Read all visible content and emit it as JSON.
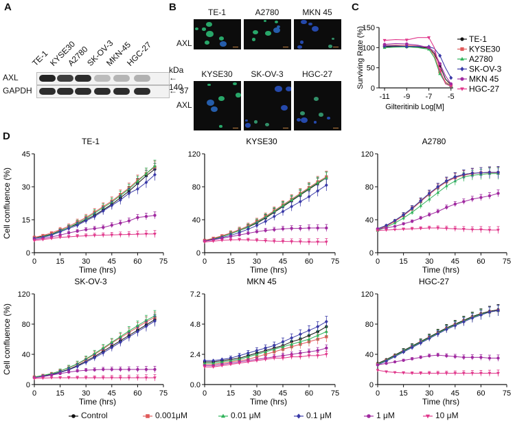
{
  "panels": {
    "a": "A",
    "b": "B",
    "c": "C",
    "d": "D"
  },
  "panelA": {
    "lanes": [
      "TE-1",
      "KYSE30",
      "A2780",
      "SK-OV-3",
      "MKN-45",
      "HGC-27"
    ],
    "rows": [
      {
        "name": "AXL",
        "marker": "140",
        "band_intensity": [
          0.95,
          0.8,
          0.9,
          0.12,
          0.15,
          0.18
        ]
      },
      {
        "name": "GAPDH",
        "marker": "37",
        "band_intensity": [
          0.9,
          0.9,
          0.9,
          0.9,
          0.9,
          0.9
        ]
      }
    ],
    "kda_label": "kDa",
    "arrow": "←"
  },
  "panelB": {
    "row_label": "AXL",
    "images": [
      {
        "title": "TE-1",
        "signal": "green"
      },
      {
        "title": "A2780",
        "signal": "green"
      },
      {
        "title": "MKN 45",
        "signal": "blue"
      },
      {
        "title": "KYSE30",
        "signal": "green"
      },
      {
        "title": "SK-OV-3",
        "signal": "blue"
      },
      {
        "title": "HGC-27",
        "signal": "blue"
      }
    ]
  },
  "chart_data": [
    {
      "type": "line",
      "id": "surviving",
      "title": "",
      "xlabel": "Gilteritinib  Log[M]",
      "ylabel": "Surviving Rate (%)",
      "xlim": [
        -11.5,
        -4.8
      ],
      "ylim": [
        0,
        150
      ],
      "xticks": [
        -11,
        -9,
        -7,
        -5
      ],
      "yticks": [
        0,
        50,
        100,
        150
      ],
      "x": [
        -11,
        -10,
        -9,
        -8,
        -7,
        -6.5,
        -6,
        -5.5,
        -5
      ],
      "series": [
        {
          "name": "TE-1",
          "color": "#111111",
          "marker": "circle",
          "values": [
            102,
            103,
            102,
            101,
            99,
            85,
            55,
            22,
            8
          ]
        },
        {
          "name": "KYSE30",
          "color": "#e05a5a",
          "marker": "square",
          "values": [
            105,
            106,
            105,
            104,
            100,
            80,
            40,
            15,
            6
          ]
        },
        {
          "name": "A2780",
          "color": "#2fb35a",
          "marker": "triangle",
          "values": [
            100,
            101,
            102,
            100,
            96,
            75,
            35,
            12,
            5
          ]
        },
        {
          "name": "SK-OV-3",
          "color": "#3a3aa8",
          "marker": "diamond",
          "values": [
            104,
            104,
            103,
            103,
            102,
            98,
            80,
            50,
            25
          ]
        },
        {
          "name": "MKN 45",
          "color": "#a02aa0",
          "marker": "circle",
          "values": [
            108,
            110,
            109,
            106,
            100,
            90,
            60,
            30,
            10
          ]
        },
        {
          "name": "HGC-27",
          "color": "#e0358a",
          "marker": "tri-down",
          "values": [
            118,
            120,
            119,
            125,
            125,
            100,
            45,
            10,
            4
          ]
        }
      ],
      "legend": "right"
    },
    {
      "type": "line",
      "id": "te1",
      "title": "TE-1",
      "xlabel": "Time (hrs)",
      "ylabel": "Cell confluence (%)",
      "xlim": [
        0,
        75
      ],
      "ylim": [
        0,
        45
      ],
      "xticks": [
        0,
        15,
        30,
        45,
        60,
        75
      ],
      "yticks": [
        0,
        15,
        30,
        45
      ],
      "x": [
        0,
        5,
        10,
        15,
        20,
        25,
        30,
        35,
        40,
        45,
        50,
        55,
        60,
        65,
        70
      ],
      "series": [
        {
          "name": "Control",
          "values": [
            7,
            7.5,
            8.5,
            10,
            11.5,
            13,
            15,
            17,
            19.5,
            22,
            25,
            28,
            31.5,
            35,
            38
          ]
        },
        {
          "name": "0.001μM",
          "values": [
            7,
            7.8,
            9,
            10.5,
            12,
            14,
            16,
            18.5,
            21,
            23.5,
            26.5,
            29.5,
            33,
            36,
            39
          ]
        },
        {
          "name": "0.01 μM",
          "values": [
            6.5,
            7.3,
            8.3,
            9.8,
            11.5,
            13.5,
            15.5,
            18,
            20.5,
            23,
            26,
            29,
            32.5,
            36,
            39.5
          ]
        },
        {
          "name": "0.1 μM",
          "values": [
            6.5,
            7,
            8,
            9.5,
            11,
            12.5,
            14.5,
            16.5,
            19,
            21.5,
            24,
            27,
            29,
            32,
            35.5
          ]
        },
        {
          "name": "1 μM",
          "values": [
            6,
            6.5,
            7.2,
            8,
            9,
            9.8,
            10.5,
            11,
            11.5,
            12.5,
            13.5,
            14.5,
            16,
            16.5,
            17
          ]
        },
        {
          "name": "10 μM",
          "values": [
            5.5,
            6,
            6.5,
            7,
            7.2,
            7.5,
            7.7,
            7.9,
            8,
            8.1,
            8.2,
            8.3,
            8.4,
            8.5,
            8.5
          ]
        }
      ]
    },
    {
      "type": "line",
      "id": "kyse30",
      "title": "KYSE30",
      "xlabel": "Time (hrs)",
      "ylabel": "",
      "xlim": [
        0,
        75
      ],
      "ylim": [
        0,
        120
      ],
      "xticks": [
        0,
        15,
        30,
        45,
        60,
        75
      ],
      "yticks": [
        0,
        40,
        80,
        120
      ],
      "x": [
        0,
        5,
        10,
        15,
        20,
        25,
        30,
        35,
        40,
        45,
        50,
        55,
        60,
        65,
        70
      ],
      "series": [
        {
          "name": "Control",
          "values": [
            15,
            17,
            20,
            23,
            27,
            31,
            36,
            42,
            49,
            56,
            63,
            70,
            77,
            84,
            91
          ]
        },
        {
          "name": "0.001μM",
          "values": [
            15,
            17.5,
            20.5,
            24,
            28,
            32.5,
            38,
            44,
            51,
            58,
            65,
            72,
            79,
            86,
            92
          ]
        },
        {
          "name": "0.01 μM",
          "values": [
            14,
            16.5,
            19.5,
            23,
            27,
            31.5,
            37,
            43,
            50,
            57,
            64,
            71,
            78,
            85,
            91
          ]
        },
        {
          "name": "0.1 μM",
          "values": [
            14,
            16,
            18.5,
            21,
            24.5,
            28.5,
            33,
            38,
            44,
            50,
            56,
            62,
            68,
            75,
            82
          ]
        },
        {
          "name": "1 μM",
          "values": [
            14,
            15.5,
            17.5,
            19.5,
            21.5,
            23.5,
            25.5,
            27,
            28,
            29,
            29.5,
            29.5,
            30,
            30,
            30
          ]
        },
        {
          "name": "10 μM",
          "values": [
            13,
            14,
            15,
            15.5,
            15.8,
            15.5,
            15,
            14.5,
            14,
            13.8,
            13.5,
            13.3,
            13,
            13,
            13
          ]
        }
      ]
    },
    {
      "type": "line",
      "id": "a2780",
      "title": "A2780",
      "xlabel": "Time (hrs)",
      "ylabel": "",
      "xlim": [
        0,
        75
      ],
      "ylim": [
        0,
        120
      ],
      "xticks": [
        0,
        15,
        30,
        45,
        60,
        75
      ],
      "yticks": [
        0,
        40,
        80,
        120
      ],
      "x": [
        0,
        5,
        10,
        15,
        20,
        25,
        30,
        35,
        40,
        45,
        50,
        55,
        60,
        65,
        70
      ],
      "series": [
        {
          "name": "Control",
          "values": [
            29,
            33,
            39,
            46,
            54,
            63,
            72,
            80,
            87,
            92,
            95,
            96.5,
            97,
            97.5,
            97.5
          ]
        },
        {
          "name": "0.001μM",
          "values": [
            28,
            32,
            38,
            45,
            53,
            62,
            71,
            79,
            86,
            91,
            94,
            96,
            97,
            97,
            97
          ]
        },
        {
          "name": "0.01 μM",
          "values": [
            27,
            31,
            36,
            42,
            49,
            57,
            65,
            73,
            81,
            87,
            92,
            94,
            95,
            96,
            96
          ]
        },
        {
          "name": "0.1 μM",
          "values": [
            29,
            33,
            39,
            46,
            54,
            63,
            72,
            80,
            87,
            92,
            95,
            96.5,
            97,
            97.5,
            97.5
          ]
        },
        {
          "name": "1 μM",
          "values": [
            29,
            30,
            32,
            35,
            38,
            42,
            46,
            50,
            55,
            59,
            62,
            65,
            67,
            69,
            72
          ]
        },
        {
          "name": "10 μM",
          "values": [
            27,
            27.5,
            28,
            28.5,
            29,
            29.5,
            30,
            30,
            29.5,
            29,
            28.5,
            28,
            28,
            27.5,
            27.5
          ]
        }
      ]
    },
    {
      "type": "line",
      "id": "skov3",
      "title": "SK-OV-3",
      "xlabel": "Time (hrs)",
      "ylabel": "Cell confluence (%)",
      "xlim": [
        0,
        75
      ],
      "ylim": [
        0,
        120
      ],
      "xticks": [
        0,
        15,
        30,
        45,
        60,
        75
      ],
      "yticks": [
        0,
        40,
        80,
        120
      ],
      "x": [
        0,
        5,
        10,
        15,
        20,
        25,
        30,
        35,
        40,
        45,
        50,
        55,
        60,
        65,
        70
      ],
      "series": [
        {
          "name": "Control",
          "values": [
            10,
            11.5,
            13.5,
            16.5,
            20,
            25,
            31,
            37,
            44,
            51,
            58,
            65,
            72,
            79,
            86
          ]
        },
        {
          "name": "0.001μM",
          "values": [
            10,
            12,
            14.5,
            18,
            22,
            27,
            33,
            40,
            47,
            55,
            62,
            69,
            76,
            83,
            89
          ]
        },
        {
          "name": "0.01 μM",
          "values": [
            10,
            12,
            14.5,
            18,
            22.5,
            27.5,
            34,
            41,
            48.5,
            56,
            63.5,
            71,
            78,
            85,
            91
          ]
        },
        {
          "name": "0.1 μM",
          "values": [
            9,
            11,
            13,
            16,
            19.5,
            24,
            29.5,
            35.5,
            42,
            49,
            56,
            63,
            70,
            77,
            84
          ]
        },
        {
          "name": "1 μM",
          "values": [
            9,
            10.5,
            12.5,
            14.5,
            16.5,
            18,
            19,
            19.5,
            20,
            20,
            20,
            20,
            20,
            20,
            20
          ]
        },
        {
          "name": "10 μM",
          "values": [
            8,
            8.5,
            9,
            9,
            9,
            9,
            9,
            9,
            9,
            9,
            9,
            9,
            9,
            9,
            9
          ]
        }
      ]
    },
    {
      "type": "line",
      "id": "mkn45",
      "title": "MKN 45",
      "xlabel": "Time (hrs)",
      "ylabel": "",
      "xlim": [
        0,
        75
      ],
      "ylim": [
        0,
        7.2
      ],
      "xticks": [
        0,
        15,
        30,
        45,
        60,
        75
      ],
      "yticks": [
        0,
        2.4,
        4.8,
        7.2
      ],
      "x": [
        0,
        5,
        10,
        15,
        20,
        25,
        30,
        35,
        40,
        45,
        50,
        55,
        60,
        65,
        70
      ],
      "series": [
        {
          "name": "Control",
          "values": [
            1.8,
            1.8,
            1.9,
            2.0,
            2.1,
            2.3,
            2.5,
            2.7,
            2.9,
            3.1,
            3.4,
            3.6,
            3.9,
            4.2,
            4.6
          ]
        },
        {
          "name": "0.001μM",
          "values": [
            1.6,
            1.6,
            1.7,
            1.8,
            1.9,
            2.0,
            2.2,
            2.4,
            2.6,
            2.8,
            3.0,
            3.2,
            3.4,
            3.6,
            3.8
          ]
        },
        {
          "name": "0.01 μM",
          "values": [
            1.7,
            1.7,
            1.8,
            1.9,
            2.0,
            2.2,
            2.4,
            2.6,
            2.8,
            3.0,
            3.2,
            3.4,
            3.6,
            3.9,
            4.2
          ]
        },
        {
          "name": "0.1 μM",
          "values": [
            1.9,
            1.9,
            2.0,
            2.1,
            2.3,
            2.5,
            2.7,
            2.9,
            3.1,
            3.4,
            3.7,
            4.0,
            4.3,
            4.6,
            5.0
          ]
        },
        {
          "name": "1 μM",
          "values": [
            1.5,
            1.5,
            1.6,
            1.7,
            1.8,
            1.9,
            2.0,
            2.1,
            2.2,
            2.3,
            2.4,
            2.5,
            2.6,
            2.7,
            2.9
          ]
        },
        {
          "name": "10 μM",
          "values": [
            1.4,
            1.4,
            1.5,
            1.6,
            1.7,
            1.8,
            1.9,
            2.0,
            2.1,
            2.1,
            2.2,
            2.2,
            2.3,
            2.3,
            2.4
          ]
        }
      ]
    },
    {
      "type": "line",
      "id": "hgc27",
      "title": "HGC-27",
      "xlabel": "Time (hrs)",
      "ylabel": "",
      "xlim": [
        0,
        75
      ],
      "ylim": [
        0,
        120
      ],
      "xticks": [
        0,
        15,
        30,
        45,
        60,
        75
      ],
      "yticks": [
        0,
        40,
        80,
        120
      ],
      "x": [
        0,
        5,
        10,
        15,
        20,
        25,
        30,
        35,
        40,
        45,
        50,
        55,
        60,
        65,
        70
      ],
      "series": [
        {
          "name": "Control",
          "values": [
            28,
            33,
            39,
            45,
            51,
            57,
            63,
            69,
            75,
            80,
            85,
            90,
            94,
            97,
            99
          ]
        },
        {
          "name": "0.001μM",
          "values": [
            27,
            32,
            38,
            44,
            50,
            56,
            62,
            68,
            74,
            79,
            84,
            89,
            93,
            96,
            98
          ]
        },
        {
          "name": "0.01 μM",
          "values": [
            27,
            32,
            38,
            44,
            50,
            56,
            62,
            68,
            74,
            79,
            84,
            89,
            93,
            96,
            98
          ]
        },
        {
          "name": "0.1 μM",
          "values": [
            26,
            31,
            37,
            43,
            49,
            55,
            61,
            67,
            73,
            78,
            83,
            88,
            92,
            96,
            98
          ]
        },
        {
          "name": "1 μM",
          "values": [
            26,
            28,
            30,
            32,
            34,
            36,
            38,
            39,
            38,
            37,
            36,
            36,
            36,
            35,
            35
          ]
        },
        {
          "name": "10 μM",
          "values": [
            19,
            17,
            16,
            15.5,
            15,
            15,
            15,
            15,
            15,
            15,
            15,
            15,
            15,
            15,
            15
          ]
        }
      ]
    }
  ],
  "legend": {
    "items": [
      {
        "name": "Control",
        "color": "#111111",
        "marker": "circle"
      },
      {
        "name": "0.001μM",
        "color": "#e05a5a",
        "marker": "square"
      },
      {
        "name": "0.01 μM",
        "color": "#2fb35a",
        "marker": "triangle"
      },
      {
        "name": "0.1 μM",
        "color": "#3a3aa8",
        "marker": "diamond"
      },
      {
        "name": "1 μM",
        "color": "#a02aa0",
        "marker": "circle"
      },
      {
        "name": "10 μM",
        "color": "#e0358a",
        "marker": "tri-down"
      }
    ]
  }
}
